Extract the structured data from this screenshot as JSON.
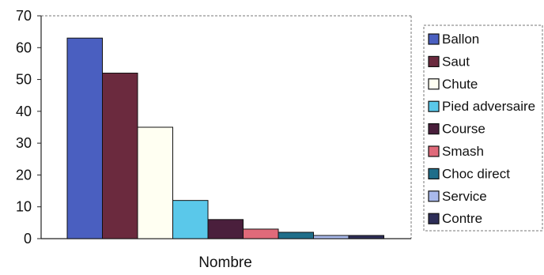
{
  "chart_data": {
    "type": "bar",
    "title": "",
    "xlabel": "Nombre",
    "ylabel": "",
    "ylim": [
      0,
      70
    ],
    "yticks": [
      0,
      10,
      20,
      30,
      40,
      50,
      60,
      70
    ],
    "grid": false,
    "legend_position": "right",
    "categories": [
      "Nombre"
    ],
    "series": [
      {
        "name": "Ballon",
        "values": [
          63
        ],
        "color": "#4a5fc0"
      },
      {
        "name": "Saut",
        "values": [
          52
        ],
        "color": "#6b2a3e"
      },
      {
        "name": "Chute",
        "values": [
          35
        ],
        "color": "#fffff2"
      },
      {
        "name": "Pied adversaire",
        "values": [
          12
        ],
        "color": "#5ac8ea"
      },
      {
        "name": "Course",
        "values": [
          6
        ],
        "color": "#4a1f3c"
      },
      {
        "name": "Smash",
        "values": [
          3
        ],
        "color": "#e06a7a"
      },
      {
        "name": "Choc direct",
        "values": [
          2
        ],
        "color": "#1f6e8a"
      },
      {
        "name": "Service",
        "values": [
          1
        ],
        "color": "#a9b9ec"
      },
      {
        "name": "Contre",
        "values": [
          1
        ],
        "color": "#2e2e58"
      }
    ]
  }
}
